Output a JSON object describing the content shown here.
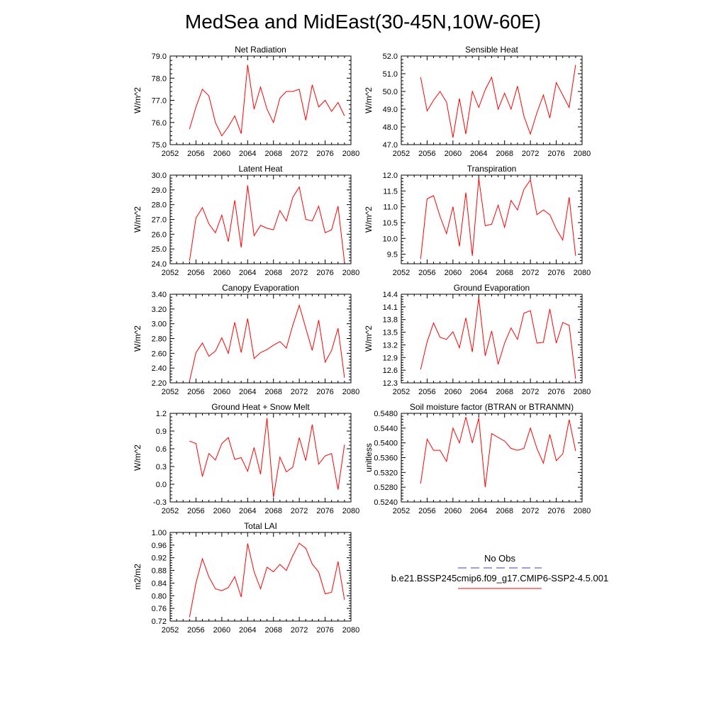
{
  "title": "MedSea and MidEast(30-45N,10W-60E)",
  "legend": {
    "obs_label": "No Obs",
    "model_label": "b.e21.BSSP245cmip6.f09_g17.CMIP6-SSP2-4.5.001",
    "obs_color": "#3b3bd6",
    "model_color": "#ff0000"
  },
  "colors": {
    "line": "#ff0000",
    "axis": "#000000"
  },
  "chart_data": [
    {
      "type": "line",
      "title": "Net Radiation",
      "ylabel": "W/m^2",
      "xlim": [
        2052,
        2080
      ],
      "ylim": [
        75.0,
        79.0
      ],
      "xticks": [
        2052,
        2056,
        2060,
        2064,
        2068,
        2072,
        2076,
        2080
      ],
      "yticks": [
        "75.0",
        "76.0",
        "77.0",
        "78.0",
        "79.0"
      ],
      "x": [
        2055,
        2056,
        2057,
        2058,
        2059,
        2060,
        2061,
        2062,
        2063,
        2064,
        2065,
        2066,
        2067,
        2068,
        2069,
        2070,
        2071,
        2072,
        2073,
        2074,
        2075,
        2076,
        2077,
        2078,
        2079
      ],
      "values": [
        75.7,
        76.7,
        77.5,
        77.2,
        76.0,
        75.4,
        75.8,
        76.3,
        75.5,
        78.6,
        76.6,
        77.6,
        76.6,
        76.0,
        77.1,
        77.4,
        77.4,
        77.5,
        76.1,
        77.7,
        76.7,
        77.0,
        76.5,
        76.9,
        76.3
      ]
    },
    {
      "type": "line",
      "title": "Sensible Heat",
      "ylabel": "W/m^2",
      "xlim": [
        2052,
        2080
      ],
      "ylim": [
        47.0,
        52.0
      ],
      "xticks": [
        2052,
        2056,
        2060,
        2064,
        2068,
        2072,
        2076,
        2080
      ],
      "yticks": [
        "47.0",
        "48.0",
        "49.0",
        "50.0",
        "51.0",
        "52.0"
      ],
      "x": [
        2055,
        2056,
        2057,
        2058,
        2059,
        2060,
        2061,
        2062,
        2063,
        2064,
        2065,
        2066,
        2067,
        2068,
        2069,
        2070,
        2071,
        2072,
        2073,
        2074,
        2075,
        2076,
        2077,
        2078,
        2079
      ],
      "values": [
        50.8,
        48.9,
        49.5,
        50.0,
        49.4,
        47.4,
        49.6,
        47.6,
        50.0,
        49.1,
        50.1,
        50.8,
        49.0,
        49.9,
        49.0,
        50.3,
        48.6,
        47.6,
        48.8,
        49.8,
        48.5,
        50.5,
        49.8,
        49.1,
        51.5
      ]
    },
    {
      "type": "line",
      "title": "Latent Heat",
      "ylabel": "W/m^2",
      "xlim": [
        2052,
        2080
      ],
      "ylim": [
        24.0,
        30.0
      ],
      "xticks": [
        2052,
        2056,
        2060,
        2064,
        2068,
        2072,
        2076,
        2080
      ],
      "yticks": [
        "24.0",
        "25.0",
        "26.0",
        "27.0",
        "28.0",
        "29.0",
        "30.0"
      ],
      "x": [
        2055,
        2056,
        2057,
        2058,
        2059,
        2060,
        2061,
        2062,
        2063,
        2064,
        2065,
        2066,
        2067,
        2068,
        2069,
        2070,
        2071,
        2072,
        2073,
        2074,
        2075,
        2076,
        2077,
        2078,
        2079
      ],
      "values": [
        24.2,
        27.1,
        27.8,
        26.7,
        26.1,
        27.3,
        25.5,
        28.3,
        25.1,
        29.3,
        25.9,
        26.6,
        26.4,
        26.3,
        27.6,
        26.9,
        28.5,
        29.2,
        27.0,
        26.9,
        27.9,
        26.1,
        26.3,
        27.9,
        24.1
      ]
    },
    {
      "type": "line",
      "title": "Transpiration",
      "ylabel": "W/m^2",
      "xlim": [
        2052,
        2080
      ],
      "ylim": [
        9.2,
        12.0
      ],
      "xticks": [
        2052,
        2056,
        2060,
        2064,
        2068,
        2072,
        2076,
        2080
      ],
      "yticks": [
        "9.5",
        "10.0",
        "10.5",
        "11.0",
        "11.5",
        "12.0"
      ],
      "x": [
        2055,
        2056,
        2057,
        2058,
        2059,
        2060,
        2061,
        2062,
        2063,
        2064,
        2065,
        2066,
        2067,
        2068,
        2069,
        2070,
        2071,
        2072,
        2073,
        2074,
        2075,
        2076,
        2077,
        2078,
        2079
      ],
      "values": [
        9.35,
        11.25,
        11.35,
        10.7,
        10.15,
        11.0,
        9.75,
        11.45,
        9.45,
        11.9,
        10.4,
        10.45,
        11.05,
        10.35,
        11.2,
        10.9,
        11.55,
        11.85,
        10.75,
        10.9,
        10.75,
        10.3,
        9.95,
        11.3,
        9.45
      ]
    },
    {
      "type": "line",
      "title": "Canopy Evaporation",
      "ylabel": "W/m^2",
      "xlim": [
        2052,
        2080
      ],
      "ylim": [
        2.2,
        3.4
      ],
      "xticks": [
        2052,
        2056,
        2060,
        2064,
        2068,
        2072,
        2076,
        2080
      ],
      "yticks": [
        "2.20",
        "2.40",
        "2.60",
        "2.80",
        "3.00",
        "3.20",
        "3.40"
      ],
      "x": [
        2055,
        2056,
        2057,
        2058,
        2059,
        2060,
        2061,
        2062,
        2063,
        2064,
        2065,
        2066,
        2067,
        2068,
        2069,
        2070,
        2071,
        2072,
        2073,
        2074,
        2075,
        2076,
        2077,
        2078,
        2079
      ],
      "values": [
        2.22,
        2.61,
        2.74,
        2.56,
        2.63,
        2.81,
        2.6,
        3.02,
        2.61,
        3.07,
        2.53,
        2.61,
        2.65,
        2.71,
        2.76,
        2.67,
        2.98,
        3.25,
        2.94,
        2.64,
        3.05,
        2.48,
        2.64,
        2.94,
        2.27
      ]
    },
    {
      "type": "line",
      "title": "Ground Evaporation",
      "ylabel": "W/m^2",
      "xlim": [
        2052,
        2080
      ],
      "ylim": [
        12.3,
        14.4
      ],
      "xticks": [
        2052,
        2056,
        2060,
        2064,
        2068,
        2072,
        2076,
        2080
      ],
      "yticks": [
        "12.3",
        "12.6",
        "12.9",
        "13.2",
        "13.5",
        "13.8",
        "14.1",
        "14.4"
      ],
      "x": [
        2055,
        2056,
        2057,
        2058,
        2059,
        2060,
        2061,
        2062,
        2063,
        2064,
        2065,
        2066,
        2067,
        2068,
        2069,
        2070,
        2071,
        2072,
        2073,
        2074,
        2075,
        2076,
        2077,
        2078,
        2079
      ],
      "values": [
        12.62,
        13.27,
        13.72,
        13.38,
        13.33,
        13.51,
        13.13,
        13.84,
        13.03,
        14.32,
        12.94,
        13.53,
        12.74,
        13.24,
        13.6,
        13.33,
        13.95,
        14.01,
        13.24,
        13.26,
        14.05,
        13.24,
        13.73,
        13.66,
        12.39
      ]
    },
    {
      "type": "line",
      "title": "Ground Heat + Snow Melt",
      "ylabel": "W/m^2",
      "xlim": [
        2052,
        2080
      ],
      "ylim": [
        -0.3,
        1.2
      ],
      "xticks": [
        2052,
        2056,
        2060,
        2064,
        2068,
        2072,
        2076,
        2080
      ],
      "yticks": [
        "-0.3",
        "0.0",
        "0.3",
        "0.6",
        "0.9",
        "1.2"
      ],
      "x": [
        2055,
        2056,
        2057,
        2058,
        2059,
        2060,
        2061,
        2062,
        2063,
        2064,
        2065,
        2066,
        2067,
        2068,
        2069,
        2070,
        2071,
        2072,
        2073,
        2074,
        2075,
        2076,
        2077,
        2078,
        2079
      ],
      "values": [
        0.73,
        0.69,
        0.13,
        0.52,
        0.41,
        0.69,
        0.79,
        0.42,
        0.45,
        0.22,
        0.62,
        0.17,
        1.12,
        -0.22,
        0.46,
        0.21,
        0.29,
        0.79,
        0.4,
        1.01,
        0.34,
        0.48,
        0.52,
        -0.09,
        0.67
      ]
    },
    {
      "type": "line",
      "title": "Soil moisture factor (BTRAN or BTRANMN)",
      "ylabel": "unitless",
      "xlim": [
        2052,
        2080
      ],
      "ylim": [
        0.524,
        0.548
      ],
      "xticks": [
        2052,
        2056,
        2060,
        2064,
        2068,
        2072,
        2076,
        2080
      ],
      "yticks": [
        "0.5240",
        "0.5280",
        "0.5320",
        "0.5360",
        "0.5400",
        "0.5440",
        "0.5480"
      ],
      "x": [
        2055,
        2056,
        2057,
        2058,
        2059,
        2060,
        2061,
        2062,
        2063,
        2064,
        2065,
        2066,
        2067,
        2068,
        2069,
        2070,
        2071,
        2072,
        2073,
        2074,
        2075,
        2076,
        2077,
        2078,
        2079
      ],
      "values": [
        0.529,
        0.541,
        0.538,
        0.538,
        0.535,
        0.544,
        0.54,
        0.547,
        0.54,
        0.5467,
        0.528,
        0.5425,
        0.5415,
        0.5405,
        0.5385,
        0.538,
        0.5385,
        0.544,
        0.5385,
        0.5345,
        0.5423,
        0.5352,
        0.537,
        0.5463,
        0.5378
      ]
    },
    {
      "type": "line",
      "title": "Total LAI",
      "ylabel": "m2/m2",
      "xlim": [
        2052,
        2080
      ],
      "ylim": [
        0.72,
        1.0
      ],
      "xticks": [
        2052,
        2056,
        2060,
        2064,
        2068,
        2072,
        2076,
        2080
      ],
      "yticks": [
        "0.72",
        "0.76",
        "0.80",
        "0.84",
        "0.88",
        "0.92",
        "0.96",
        "1.00"
      ],
      "x": [
        2055,
        2056,
        2057,
        2058,
        2059,
        2060,
        2061,
        2062,
        2063,
        2064,
        2065,
        2066,
        2067,
        2068,
        2069,
        2070,
        2071,
        2072,
        2073,
        2074,
        2075,
        2076,
        2077,
        2078,
        2079
      ],
      "values": [
        0.732,
        0.84,
        0.917,
        0.86,
        0.822,
        0.816,
        0.826,
        0.86,
        0.796,
        0.965,
        0.876,
        0.822,
        0.89,
        0.876,
        0.899,
        0.88,
        0.927,
        0.966,
        0.95,
        0.9,
        0.875,
        0.806,
        0.811,
        0.908,
        0.787
      ]
    }
  ]
}
